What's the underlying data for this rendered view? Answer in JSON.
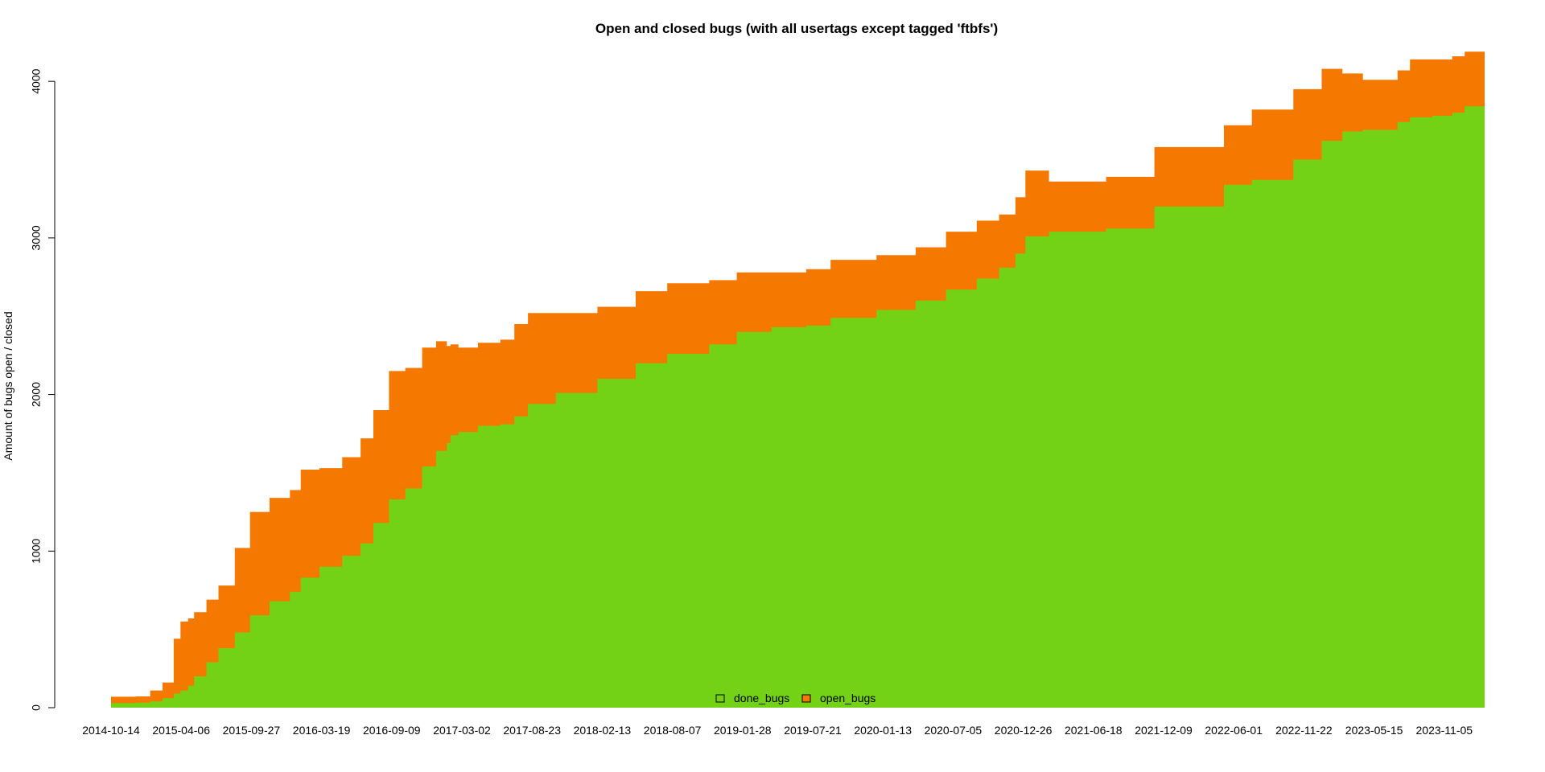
{
  "chart_data": {
    "type": "area",
    "title": "Open and closed bugs (with all usertags except tagged 'ftbfs')",
    "xlabel": "",
    "ylabel": "Amount of bugs open / closed",
    "stacked": true,
    "x_tick_labels": [
      "2014-10-14",
      "2015-04-06",
      "2015-09-27",
      "2016-03-19",
      "2016-09-09",
      "2017-03-02",
      "2017-08-23",
      "2018-02-13",
      "2018-08-07",
      "2019-01-28",
      "2019-07-21",
      "2020-01-13",
      "2020-07-05",
      "2020-12-26",
      "2021-06-18",
      "2021-12-09",
      "2022-06-01",
      "2022-11-22",
      "2023-05-15",
      "2023-11-05"
    ],
    "y_ticks": [
      0,
      1000,
      2000,
      3000,
      4000
    ],
    "ylim": [
      0,
      4160
    ],
    "xlim": [
      "2014-10-14",
      "2024-03-15"
    ],
    "grid": false,
    "legend_position": "bottom-center",
    "series": [
      {
        "name": "done_bugs",
        "color": "#73d216",
        "points": [
          [
            "2014-10-14",
            30
          ],
          [
            "2014-12-15",
            32
          ],
          [
            "2015-01-20",
            40
          ],
          [
            "2015-02-20",
            60
          ],
          [
            "2015-03-20",
            90
          ],
          [
            "2015-04-06",
            110
          ],
          [
            "2015-04-25",
            140
          ],
          [
            "2015-05-10",
            200
          ],
          [
            "2015-06-10",
            290
          ],
          [
            "2015-07-10",
            380
          ],
          [
            "2015-08-20",
            480
          ],
          [
            "2015-09-27",
            590
          ],
          [
            "2015-11-15",
            680
          ],
          [
            "2016-01-05",
            740
          ],
          [
            "2016-02-01",
            830
          ],
          [
            "2016-03-19",
            900
          ],
          [
            "2016-05-15",
            970
          ],
          [
            "2016-06-30",
            1050
          ],
          [
            "2016-08-01",
            1180
          ],
          [
            "2016-09-09",
            1330
          ],
          [
            "2016-10-20",
            1400
          ],
          [
            "2016-12-01",
            1540
          ],
          [
            "2017-01-05",
            1640
          ],
          [
            "2017-02-01",
            1690
          ],
          [
            "2017-02-10",
            1740
          ],
          [
            "2017-03-02",
            1760
          ],
          [
            "2017-04-20",
            1800
          ],
          [
            "2017-06-15",
            1810
          ],
          [
            "2017-07-20",
            1860
          ],
          [
            "2017-08-23",
            1940
          ],
          [
            "2017-11-01",
            2010
          ],
          [
            "2018-02-13",
            2100
          ],
          [
            "2018-05-20",
            2200
          ],
          [
            "2018-08-07",
            2260
          ],
          [
            "2018-11-20",
            2320
          ],
          [
            "2019-01-28",
            2400
          ],
          [
            "2019-04-25",
            2430
          ],
          [
            "2019-07-21",
            2440
          ],
          [
            "2019-09-20",
            2490
          ],
          [
            "2020-01-13",
            2540
          ],
          [
            "2020-04-20",
            2600
          ],
          [
            "2020-07-05",
            2670
          ],
          [
            "2020-09-20",
            2740
          ],
          [
            "2020-11-15",
            2810
          ],
          [
            "2020-12-26",
            2900
          ],
          [
            "2021-01-20",
            3010
          ],
          [
            "2021-03-20",
            3040
          ],
          [
            "2021-06-18",
            3040
          ],
          [
            "2021-08-10",
            3060
          ],
          [
            "2021-12-09",
            3200
          ],
          [
            "2022-06-01",
            3340
          ],
          [
            "2022-08-10",
            3370
          ],
          [
            "2022-11-22",
            3500
          ],
          [
            "2023-02-01",
            3620
          ],
          [
            "2023-03-25",
            3680
          ],
          [
            "2023-05-15",
            3690
          ],
          [
            "2023-08-10",
            3740
          ],
          [
            "2023-09-10",
            3770
          ],
          [
            "2023-11-05",
            3780
          ],
          [
            "2023-12-25",
            3800
          ],
          [
            "2024-01-25",
            3840
          ],
          [
            "2024-03-15",
            3860
          ]
        ]
      },
      {
        "name": "open_bugs",
        "color": "#f57900",
        "points": [
          [
            "2014-10-14",
            40
          ],
          [
            "2014-12-15",
            40
          ],
          [
            "2015-01-20",
            70
          ],
          [
            "2015-02-20",
            100
          ],
          [
            "2015-03-05",
            350
          ],
          [
            "2015-03-20",
            440
          ],
          [
            "2015-04-06",
            430
          ],
          [
            "2015-04-25",
            410
          ],
          [
            "2015-05-10",
            400
          ],
          [
            "2015-06-10",
            400
          ],
          [
            "2015-07-10",
            540
          ],
          [
            "2015-08-20",
            660
          ],
          [
            "2015-09-27",
            660
          ],
          [
            "2015-11-15",
            650
          ],
          [
            "2016-01-05",
            690
          ],
          [
            "2016-02-01",
            630
          ],
          [
            "2016-03-19",
            630
          ],
          [
            "2016-05-15",
            670
          ],
          [
            "2016-06-30",
            720
          ],
          [
            "2016-08-01",
            820
          ],
          [
            "2016-09-09",
            770
          ],
          [
            "2016-10-20",
            760
          ],
          [
            "2016-12-01",
            700
          ],
          [
            "2017-01-05",
            620
          ],
          [
            "2017-02-01",
            580
          ],
          [
            "2017-02-10",
            540
          ],
          [
            "2017-03-02",
            530
          ],
          [
            "2017-04-20",
            540
          ],
          [
            "2017-06-15",
            590
          ],
          [
            "2017-07-20",
            580
          ],
          [
            "2017-08-23",
            510
          ],
          [
            "2017-11-01",
            460
          ],
          [
            "2018-02-13",
            460
          ],
          [
            "2018-05-20",
            450
          ],
          [
            "2018-08-07",
            410
          ],
          [
            "2018-11-20",
            380
          ],
          [
            "2019-01-28",
            350
          ],
          [
            "2019-04-25",
            360
          ],
          [
            "2019-07-21",
            370
          ],
          [
            "2019-09-20",
            350
          ],
          [
            "2020-01-13",
            340
          ],
          [
            "2020-04-20",
            370
          ],
          [
            "2020-07-05",
            370
          ],
          [
            "2020-09-20",
            340
          ],
          [
            "2020-11-15",
            360
          ],
          [
            "2020-12-26",
            420
          ],
          [
            "2021-01-20",
            320
          ],
          [
            "2021-03-20",
            320
          ],
          [
            "2021-06-18",
            330
          ],
          [
            "2021-08-10",
            380
          ],
          [
            "2021-12-09",
            380
          ],
          [
            "2022-06-01",
            450
          ],
          [
            "2022-08-10",
            450
          ],
          [
            "2022-11-22",
            460
          ],
          [
            "2023-02-01",
            370
          ],
          [
            "2023-03-25",
            320
          ],
          [
            "2023-05-15",
            330
          ],
          [
            "2023-08-10",
            370
          ],
          [
            "2023-09-10",
            360
          ],
          [
            "2023-11-05",
            360
          ],
          [
            "2023-12-25",
            350
          ],
          [
            "2024-01-25",
            320
          ],
          [
            "2024-03-15",
            300
          ]
        ]
      }
    ],
    "legend": [
      {
        "name": "done_bugs",
        "color": "#73d216"
      },
      {
        "name": "open_bugs",
        "color": "#f57900"
      }
    ]
  }
}
